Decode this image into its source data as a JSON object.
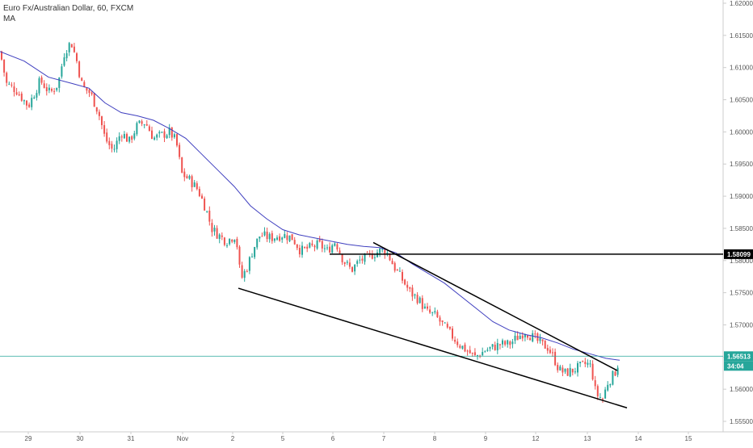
{
  "chart_data": {
    "type": "candlestick",
    "title": "Euro Fx/Australian Dollar, 60, FXCM",
    "indicator": "MA",
    "x_ticks": [
      "29",
      "30",
      "31",
      "Nov",
      "2",
      "5",
      "6",
      "7",
      "8",
      "9",
      "12",
      "13",
      "14",
      "15"
    ],
    "y_ticks": [
      "1.62000",
      "1.61500",
      "1.61000",
      "1.60500",
      "1.60000",
      "1.59500",
      "1.59000",
      "1.58500",
      "1.58000",
      "1.57500",
      "1.57000",
      "1.56500",
      "1.56000",
      "1.55500"
    ],
    "ylim": [
      1.553,
      1.6205
    ],
    "price_label": "1.56513",
    "countdown_label": "34:04",
    "level_label": "1.58099",
    "current_price": 1.56513,
    "horizontal_level": 1.58099,
    "colors": {
      "up": "#26a69a",
      "down": "#ef5350",
      "ma": "#3f3fbf",
      "price_line": "#26a69a",
      "drawing": "#000000",
      "axis_text": "#555555",
      "border": "#cccccc"
    },
    "trendlines": [
      {
        "name": "lower-wedge-line",
        "from": [
          "Nov 2",
          1.5757
        ],
        "to": [
          "Nov 13 end",
          1.5571
        ]
      },
      {
        "name": "upper-wedge-line",
        "from": [
          "Nov 6 late",
          1.5828
        ],
        "to": [
          "Nov 13 mid",
          1.5629
        ]
      }
    ],
    "price_path": [
      [
        0,
        1.6125
      ],
      [
        8,
        1.6075
      ],
      [
        20,
        1.6065
      ],
      [
        35,
        1.604
      ],
      [
        50,
        1.608
      ],
      [
        62,
        1.606
      ],
      [
        72,
        1.6075
      ],
      [
        80,
        1.6125
      ],
      [
        88,
        1.614
      ],
      [
        95,
        1.611
      ],
      [
        102,
        1.607
      ],
      [
        112,
        1.606
      ],
      [
        122,
        1.603
      ],
      [
        130,
        1.599
      ],
      [
        140,
        1.597
      ],
      [
        150,
        1.6
      ],
      [
        160,
        1.5985
      ],
      [
        170,
        1.601
      ],
      [
        180,
        1.6015
      ],
      [
        190,
        1.599
      ],
      [
        200,
        1.5995
      ],
      [
        210,
        1.6
      ],
      [
        218,
        1.5985
      ],
      [
        225,
        1.5935
      ],
      [
        235,
        1.5925
      ],
      [
        245,
        1.591
      ],
      [
        255,
        1.588
      ],
      [
        262,
        1.585
      ],
      [
        270,
        1.584
      ],
      [
        280,
        1.583
      ],
      [
        292,
        1.584
      ],
      [
        298,
        1.577
      ],
      [
        306,
        1.579
      ],
      [
        314,
        1.582
      ],
      [
        322,
        1.584
      ],
      [
        335,
        1.5835
      ],
      [
        350,
        1.584
      ],
      [
        362,
        1.5835
      ],
      [
        372,
        1.5815
      ],
      [
        384,
        1.582
      ],
      [
        395,
        1.5825
      ],
      [
        405,
        1.5815
      ],
      [
        415,
        1.583
      ],
      [
        425,
        1.58
      ],
      [
        435,
        1.5785
      ],
      [
        445,
        1.58
      ],
      [
        455,
        1.5805
      ],
      [
        462,
        1.581
      ],
      [
        470,
        1.5815
      ],
      [
        478,
        1.5815
      ],
      [
        488,
        1.579
      ],
      [
        498,
        1.577
      ],
      [
        508,
        1.575
      ],
      [
        518,
        1.574
      ],
      [
        528,
        1.572
      ],
      [
        538,
        1.5715
      ],
      [
        548,
        1.57
      ],
      [
        558,
        1.5685
      ],
      [
        568,
        1.567
      ],
      [
        578,
        1.566
      ],
      [
        588,
        1.565
      ],
      [
        600,
        1.566
      ],
      [
        610,
        1.5665
      ],
      [
        620,
        1.567
      ],
      [
        630,
        1.567
      ],
      [
        640,
        1.568
      ],
      [
        650,
        1.569
      ],
      [
        660,
        1.568
      ],
      [
        670,
        1.567
      ],
      [
        678,
        1.5665
      ],
      [
        685,
        1.565
      ],
      [
        692,
        1.563
      ],
      [
        700,
        1.5625
      ],
      [
        710,
        1.563
      ],
      [
        718,
        1.5635
      ],
      [
        726,
        1.564
      ],
      [
        732,
        1.5635
      ],
      [
        736,
        1.56
      ],
      [
        740,
        1.559
      ],
      [
        746,
        1.5585
      ],
      [
        752,
        1.561
      ],
      [
        758,
        1.562
      ],
      [
        763,
        1.563
      ],
      [
        767,
        1.5651
      ]
    ],
    "ma_path": [
      [
        0,
        1.6125
      ],
      [
        30,
        1.611
      ],
      [
        60,
        1.6085
      ],
      [
        90,
        1.6075
      ],
      [
        110,
        1.6068
      ],
      [
        130,
        1.6045
      ],
      [
        150,
        1.603
      ],
      [
        170,
        1.6025
      ],
      [
        190,
        1.6018
      ],
      [
        210,
        1.6005
      ],
      [
        230,
        1.599
      ],
      [
        250,
        1.5965
      ],
      [
        270,
        1.594
      ],
      [
        290,
        1.5915
      ],
      [
        310,
        1.5885
      ],
      [
        330,
        1.5865
      ],
      [
        350,
        1.5848
      ],
      [
        370,
        1.584
      ],
      [
        390,
        1.5835
      ],
      [
        410,
        1.583
      ],
      [
        430,
        1.5825
      ],
      [
        450,
        1.5822
      ],
      [
        470,
        1.582
      ],
      [
        490,
        1.5812
      ],
      [
        510,
        1.5795
      ],
      [
        530,
        1.578
      ],
      [
        550,
        1.5765
      ],
      [
        570,
        1.5745
      ],
      [
        590,
        1.5725
      ],
      [
        610,
        1.5705
      ],
      [
        630,
        1.5692
      ],
      [
        650,
        1.5685
      ],
      [
        670,
        1.568
      ],
      [
        690,
        1.5672
      ],
      [
        710,
        1.5662
      ],
      [
        730,
        1.5655
      ],
      [
        750,
        1.5648
      ],
      [
        767,
        1.5645
      ]
    ]
  }
}
